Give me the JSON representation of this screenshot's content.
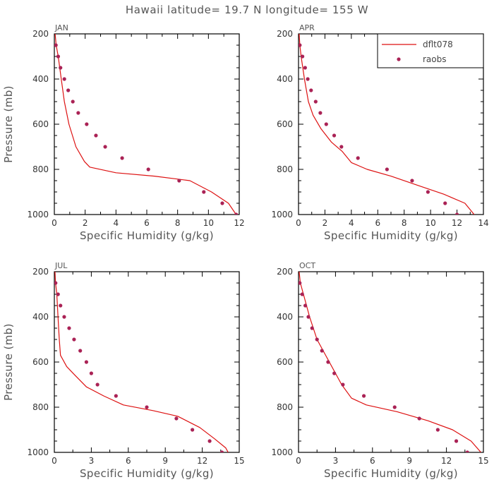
{
  "title": "Hawaii  latitude= 19.7 N longitude= 155 W",
  "legend": {
    "model_label": "dflt078",
    "obs_label": "raobs",
    "placement": "top-right of APR panel"
  },
  "colors": {
    "model_line": "#dd1111",
    "obs_marker": "#aa2255",
    "axis": "#000000",
    "text": "#555555"
  },
  "chart_data": [
    {
      "type": "scatter",
      "panel": "JAN",
      "xlabel": "Specific Humidity (g/kg)",
      "ylabel": "Pressure (mb)",
      "xlim": [
        0,
        12
      ],
      "ylim": [
        1000,
        200
      ],
      "y_inverted": true,
      "xticks": [
        0,
        2,
        4,
        6,
        8,
        10,
        12
      ],
      "yticks": [
        200,
        400,
        600,
        800,
        1000
      ],
      "grid": false,
      "series": [
        {
          "name": "dflt078",
          "kind": "line",
          "points": [
            [
              0.05,
              200
            ],
            [
              0.12,
              250
            ],
            [
              0.25,
              300
            ],
            [
              0.45,
              400
            ],
            [
              0.65,
              500
            ],
            [
              0.95,
              600
            ],
            [
              1.4,
              700
            ],
            [
              1.95,
              765
            ],
            [
              2.3,
              790
            ],
            [
              4,
              815
            ],
            [
              6.5,
              830
            ],
            [
              8.8,
              850
            ],
            [
              10.2,
              900
            ],
            [
              11.3,
              950
            ],
            [
              11.8,
              1000
            ]
          ]
        },
        {
          "name": "raobs",
          "kind": "scatter",
          "points": [
            [
              0.1,
              250
            ],
            [
              0.25,
              300
            ],
            [
              0.4,
              350
            ],
            [
              0.65,
              400
            ],
            [
              0.9,
              450
            ],
            [
              1.2,
              500
            ],
            [
              1.55,
              550
            ],
            [
              2.1,
              600
            ],
            [
              2.7,
              650
            ],
            [
              3.3,
              700
            ],
            [
              4.4,
              750
            ],
            [
              6.1,
              800
            ],
            [
              8.1,
              850
            ],
            [
              9.7,
              900
            ],
            [
              10.9,
              950
            ],
            [
              11.8,
              1000
            ]
          ]
        }
      ]
    },
    {
      "type": "scatter",
      "panel": "APR",
      "xlabel": "Specific Humidity (g/kg)",
      "ylabel": "",
      "xlim": [
        0,
        14
      ],
      "ylim": [
        1000,
        200
      ],
      "y_inverted": true,
      "xticks": [
        0,
        2,
        4,
        6,
        8,
        10,
        12,
        14
      ],
      "yticks": [
        200,
        400,
        600,
        800,
        1000
      ],
      "grid": false,
      "series": [
        {
          "name": "dflt078",
          "kind": "line",
          "points": [
            [
              0.05,
              200
            ],
            [
              0.1,
              250
            ],
            [
              0.2,
              300
            ],
            [
              0.45,
              400
            ],
            [
              0.75,
              500
            ],
            [
              1.1,
              560
            ],
            [
              1.7,
              620
            ],
            [
              2.5,
              680
            ],
            [
              3.3,
              720
            ],
            [
              4,
              770
            ],
            [
              5.2,
              800
            ],
            [
              7,
              830
            ],
            [
              9,
              870
            ],
            [
              11,
              910
            ],
            [
              12.6,
              950
            ],
            [
              13.3,
              1000
            ]
          ]
        },
        {
          "name": "raobs",
          "kind": "scatter",
          "points": [
            [
              0.1,
              250
            ],
            [
              0.3,
              300
            ],
            [
              0.5,
              350
            ],
            [
              0.7,
              400
            ],
            [
              0.95,
              450
            ],
            [
              1.3,
              500
            ],
            [
              1.65,
              550
            ],
            [
              2.1,
              600
            ],
            [
              2.7,
              650
            ],
            [
              3.25,
              700
            ],
            [
              4.5,
              750
            ],
            [
              6.7,
              800
            ],
            [
              8.6,
              850
            ],
            [
              9.8,
              900
            ],
            [
              11.1,
              950
            ],
            [
              12,
              1000
            ]
          ]
        }
      ]
    },
    {
      "type": "scatter",
      "panel": "JUL",
      "xlabel": "Specific Humidity (g/kg)",
      "ylabel": "Pressure (mb)",
      "xlim": [
        0,
        15
      ],
      "ylim": [
        1000,
        200
      ],
      "y_inverted": true,
      "xticks": [
        0,
        3,
        6,
        9,
        12,
        15
      ],
      "yticks": [
        200,
        400,
        600,
        800,
        1000
      ],
      "grid": false,
      "series": [
        {
          "name": "dflt078",
          "kind": "line",
          "points": [
            [
              0.05,
              200
            ],
            [
              0.1,
              250
            ],
            [
              0.2,
              300
            ],
            [
              0.3,
              400
            ],
            [
              0.4,
              500
            ],
            [
              0.5,
              570
            ],
            [
              1,
              620
            ],
            [
              1.7,
              660
            ],
            [
              2.6,
              710
            ],
            [
              4,
              750
            ],
            [
              5.6,
              790
            ],
            [
              8,
              815
            ],
            [
              10,
              840
            ],
            [
              11.8,
              890
            ],
            [
              13,
              940
            ],
            [
              13.9,
              980
            ],
            [
              14.1,
              1000
            ]
          ]
        },
        {
          "name": "raobs",
          "kind": "scatter",
          "points": [
            [
              0.1,
              250
            ],
            [
              0.3,
              300
            ],
            [
              0.5,
              350
            ],
            [
              0.8,
              400
            ],
            [
              1.2,
              450
            ],
            [
              1.6,
              500
            ],
            [
              2.1,
              550
            ],
            [
              2.6,
              600
            ],
            [
              3,
              650
            ],
            [
              3.5,
              700
            ],
            [
              5,
              750
            ],
            [
              7.5,
              800
            ],
            [
              9.9,
              850
            ],
            [
              11.2,
              900
            ],
            [
              12.6,
              950
            ],
            [
              13.6,
              1000
            ]
          ]
        }
      ]
    },
    {
      "type": "scatter",
      "panel": "OCT",
      "xlabel": "Specific Humidity (g/kg)",
      "ylabel": "",
      "xlim": [
        0,
        15
      ],
      "ylim": [
        1000,
        200
      ],
      "y_inverted": true,
      "xticks": [
        0,
        3,
        6,
        9,
        12,
        15
      ],
      "yticks": [
        200,
        400,
        600,
        800,
        1000
      ],
      "grid": false,
      "series": [
        {
          "name": "dflt078",
          "kind": "line",
          "points": [
            [
              0.05,
              200
            ],
            [
              0.15,
              250
            ],
            [
              0.4,
              300
            ],
            [
              0.9,
              400
            ],
            [
              1.5,
              500
            ],
            [
              2.2,
              570
            ],
            [
              3,
              650
            ],
            [
              3.5,
              700
            ],
            [
              4.3,
              760
            ],
            [
              5.5,
              790
            ],
            [
              8,
              820
            ],
            [
              10.5,
              860
            ],
            [
              12.5,
              900
            ],
            [
              14,
              950
            ],
            [
              14.8,
              1000
            ]
          ]
        },
        {
          "name": "raobs",
          "kind": "scatter",
          "points": [
            [
              0.1,
              250
            ],
            [
              0.3,
              300
            ],
            [
              0.55,
              350
            ],
            [
              0.8,
              400
            ],
            [
              1.1,
              450
            ],
            [
              1.5,
              500
            ],
            [
              1.9,
              550
            ],
            [
              2.4,
              600
            ],
            [
              2.9,
              650
            ],
            [
              3.6,
              700
            ],
            [
              5.3,
              750
            ],
            [
              7.8,
              800
            ],
            [
              9.8,
              850
            ],
            [
              11.3,
              900
            ],
            [
              12.8,
              950
            ],
            [
              13.7,
              1000
            ]
          ]
        }
      ]
    }
  ]
}
